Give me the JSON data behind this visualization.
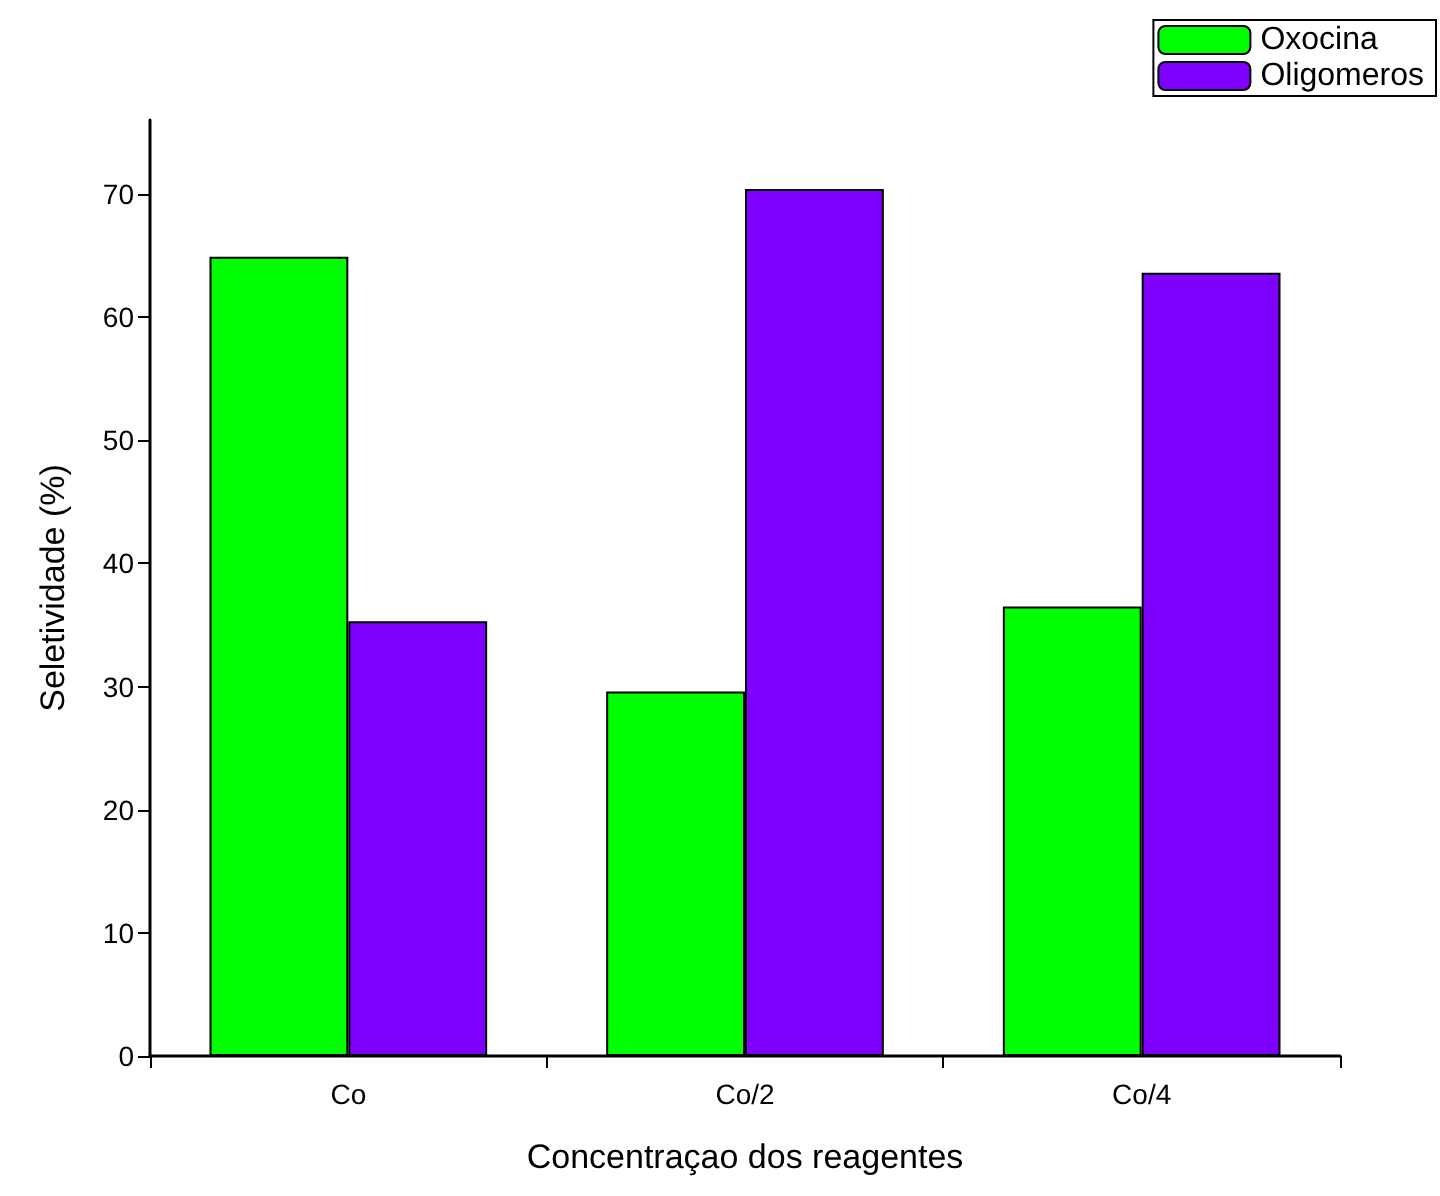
{
  "chart_data": {
    "type": "bar",
    "xlabel": "Concentraçao dos reagentes",
    "ylabel": "Seletividade (%)",
    "categories": [
      "Co",
      "Co/2",
      "Co/4"
    ],
    "series": [
      {
        "name": "Oxocina",
        "color": "#00ff00",
        "values": [
          64.9,
          29.6,
          36.5
        ]
      },
      {
        "name": "Oligomeros",
        "color": "#8000ff",
        "values": [
          35.3,
          70.4,
          63.6
        ]
      }
    ],
    "ylim": [
      0,
      76
    ],
    "yticks": [
      0,
      10,
      20,
      30,
      40,
      50,
      60,
      70
    ],
    "grid": false,
    "legend": "top right"
  }
}
